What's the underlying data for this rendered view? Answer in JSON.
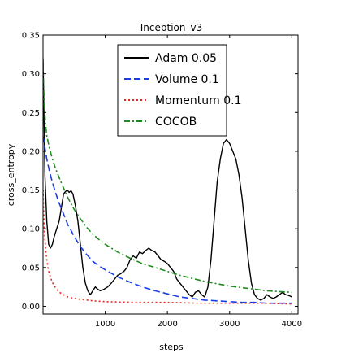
{
  "chart_data": {
    "type": "line",
    "title": "Inception_v3",
    "xlabel": "steps",
    "ylabel": "cross_entropy",
    "xlim": [
      0,
      4100
    ],
    "ylim": [
      -0.01,
      0.35
    ],
    "xticks": [
      1000,
      2000,
      3000,
      4000
    ],
    "xtick_labels": [
      "1000",
      "2000",
      "3000",
      "4000"
    ],
    "yticks": [
      0.0,
      0.05,
      0.1,
      0.15,
      0.2,
      0.25,
      0.3,
      0.35
    ],
    "ytick_labels": [
      "0.00",
      "0.05",
      "0.10",
      "0.15",
      "0.20",
      "0.25",
      "0.30",
      "0.35"
    ],
    "grid": false,
    "legend_position": "top-center",
    "series": [
      {
        "name": "Adam 0.05",
        "color": "#000000",
        "dash": "solid",
        "x": [
          0,
          30,
          60,
          90,
          120,
          150,
          180,
          220,
          260,
          300,
          330,
          360,
          390,
          420,
          450,
          480,
          520,
          560,
          600,
          640,
          680,
          720,
          760,
          800,
          840,
          880,
          920,
          980,
          1040,
          1100,
          1150,
          1200,
          1250,
          1300,
          1350,
          1400,
          1450,
          1500,
          1550,
          1600,
          1650,
          1700,
          1750,
          1800,
          1850,
          1900,
          1950,
          2000,
          2050,
          2100,
          2150,
          2200,
          2250,
          2300,
          2350,
          2400,
          2450,
          2500,
          2550,
          2600,
          2650,
          2700,
          2750,
          2800,
          2850,
          2900,
          2950,
          3000,
          3050,
          3100,
          3150,
          3200,
          3250,
          3300,
          3350,
          3400,
          3450,
          3500,
          3550,
          3600,
          3650,
          3700,
          3750,
          3800,
          3850,
          3900,
          3950,
          4000
        ],
        "y": [
          0.32,
          0.17,
          0.11,
          0.08,
          0.075,
          0.08,
          0.09,
          0.1,
          0.11,
          0.13,
          0.145,
          0.148,
          0.15,
          0.147,
          0.149,
          0.145,
          0.13,
          0.11,
          0.08,
          0.05,
          0.03,
          0.02,
          0.015,
          0.02,
          0.025,
          0.022,
          0.02,
          0.022,
          0.025,
          0.03,
          0.035,
          0.04,
          0.042,
          0.045,
          0.05,
          0.06,
          0.065,
          0.062,
          0.07,
          0.068,
          0.072,
          0.075,
          0.072,
          0.07,
          0.065,
          0.06,
          0.058,
          0.055,
          0.05,
          0.045,
          0.035,
          0.03,
          0.025,
          0.02,
          0.015,
          0.012,
          0.018,
          0.02,
          0.015,
          0.012,
          0.025,
          0.06,
          0.11,
          0.16,
          0.19,
          0.21,
          0.215,
          0.21,
          0.2,
          0.19,
          0.17,
          0.14,
          0.1,
          0.06,
          0.03,
          0.015,
          0.01,
          0.008,
          0.01,
          0.015,
          0.012,
          0.01,
          0.012,
          0.015,
          0.018,
          0.015,
          0.014,
          0.012
        ]
      },
      {
        "name": "Volume 0.1",
        "color": "#1a3ee6",
        "dash": "dashed",
        "x": [
          0,
          30,
          60,
          100,
          150,
          200,
          250,
          300,
          350,
          400,
          450,
          500,
          600,
          700,
          800,
          900,
          1000,
          1200,
          1400,
          1600,
          1800,
          2000,
          2200,
          2400,
          2600,
          2800,
          3000,
          3200,
          3400,
          3600,
          3800,
          4000
        ],
        "y": [
          0.22,
          0.205,
          0.19,
          0.175,
          0.16,
          0.147,
          0.135,
          0.125,
          0.115,
          0.105,
          0.098,
          0.09,
          0.077,
          0.067,
          0.058,
          0.052,
          0.047,
          0.038,
          0.031,
          0.025,
          0.02,
          0.016,
          0.012,
          0.01,
          0.008,
          0.007,
          0.006,
          0.005,
          0.005,
          0.004,
          0.004,
          0.004
        ]
      },
      {
        "name": "Momentum 0.1",
        "color": "#e8281e",
        "dash": "dotted",
        "x": [
          0,
          20,
          40,
          60,
          80,
          100,
          130,
          160,
          200,
          250,
          300,
          400,
          500,
          600,
          800,
          1000,
          1500,
          2000,
          2500,
          3000,
          3500,
          4000
        ],
        "y": [
          0.15,
          0.1,
          0.075,
          0.06,
          0.05,
          0.042,
          0.035,
          0.029,
          0.024,
          0.019,
          0.016,
          0.012,
          0.01,
          0.009,
          0.007,
          0.006,
          0.005,
          0.005,
          0.004,
          0.004,
          0.004,
          0.003
        ]
      },
      {
        "name": "COCOB",
        "color": "#1f8a1f",
        "dash": "dashdot",
        "x": [
          0,
          20,
          40,
          60,
          100,
          150,
          200,
          250,
          300,
          400,
          500,
          600,
          700,
          800,
          900,
          1000,
          1200,
          1400,
          1600,
          1800,
          2000,
          2200,
          2400,
          2600,
          2800,
          3000,
          3200,
          3400,
          3600,
          3800,
          4000
        ],
        "y": [
          0.31,
          0.26,
          0.235,
          0.22,
          0.205,
          0.19,
          0.178,
          0.168,
          0.158,
          0.14,
          0.125,
          0.113,
          0.102,
          0.093,
          0.086,
          0.08,
          0.07,
          0.062,
          0.055,
          0.05,
          0.045,
          0.04,
          0.036,
          0.032,
          0.029,
          0.026,
          0.024,
          0.022,
          0.02,
          0.019,
          0.018
        ]
      }
    ]
  }
}
